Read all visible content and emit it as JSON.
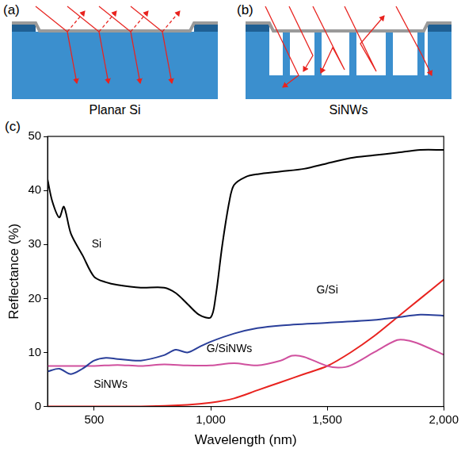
{
  "panels": [
    {
      "letter": "(a)",
      "caption": "Planar Si"
    },
    {
      "letter": "(b)",
      "caption": "SiNWs"
    },
    {
      "letter": "(c)"
    }
  ],
  "chart_data": {
    "type": "line",
    "x_label": "Wavelength (nm)",
    "y_label": "Reflectance (%)",
    "xlim": [
      300,
      2000
    ],
    "xticks": [
      500,
      1000,
      1500,
      2000
    ],
    "ylim": [
      0,
      50
    ],
    "yticks": [
      0,
      10,
      20,
      30,
      40,
      50
    ],
    "grid": false,
    "series": [
      {
        "name": "Si",
        "color": "#000000",
        "x": [
          300,
          320,
          350,
          370,
          400,
          450,
          500,
          550,
          600,
          700,
          800,
          850,
          900,
          950,
          1000,
          1020,
          1050,
          1080,
          1100,
          1150,
          1200,
          1300,
          1400,
          1500,
          1600,
          1700,
          1800,
          1900,
          2000
        ],
        "values": [
          42,
          38,
          35,
          37,
          32,
          28,
          24,
          23,
          22.5,
          22,
          22,
          21,
          19,
          17,
          16.5,
          20,
          30,
          38,
          41,
          42.5,
          43,
          43.5,
          44,
          45,
          46,
          46.5,
          47,
          47.5,
          47.5
        ]
      },
      {
        "name": "G/Si",
        "color": "#2a3f9a",
        "x": [
          300,
          350,
          400,
          450,
          500,
          550,
          600,
          700,
          800,
          850,
          900,
          950,
          1000,
          1100,
          1200,
          1300,
          1500,
          1700,
          1800,
          1900,
          2000
        ],
        "values": [
          6.5,
          7,
          6,
          7,
          8.5,
          9,
          8.8,
          8.5,
          9.5,
          10.5,
          10,
          11,
          12,
          13.5,
          14.5,
          15,
          15.5,
          16,
          16.5,
          17,
          16.8
        ]
      },
      {
        "name": "G/SiNWs",
        "color": "#d0509e",
        "x": [
          300,
          400,
          500,
          600,
          700,
          800,
          900,
          1000,
          1100,
          1200,
          1300,
          1350,
          1400,
          1500,
          1550,
          1600,
          1700,
          1800,
          1850,
          1900,
          2000
        ],
        "values": [
          7.5,
          7.5,
          7.5,
          7.7,
          7.5,
          7.8,
          7.6,
          7.6,
          8,
          7.6,
          8.5,
          9.4,
          9.2,
          7.5,
          7.2,
          7.6,
          10,
          12.3,
          12.2,
          11.5,
          9.6
        ]
      },
      {
        "name": "SiNWs",
        "color": "#e8231f",
        "x": [
          300,
          500,
          700,
          900,
          1000,
          1100,
          1200,
          1300,
          1400,
          1500,
          1600,
          1700,
          1800,
          1900,
          2000
        ],
        "values": [
          0,
          0,
          0,
          0.3,
          0.7,
          1.5,
          3,
          4.5,
          6,
          7.5,
          10,
          13,
          16.5,
          20,
          23.5
        ]
      }
    ],
    "annotations": [
      {
        "text": "Si",
        "x": 510,
        "y": 30
      },
      {
        "text": "G/Si",
        "x": 1500,
        "y": 21.5
      },
      {
        "text": "G/SiNWs",
        "x": 1080,
        "y": 10.6
      },
      {
        "text": "SiNWs",
        "x": 570,
        "y": 4
      }
    ]
  }
}
